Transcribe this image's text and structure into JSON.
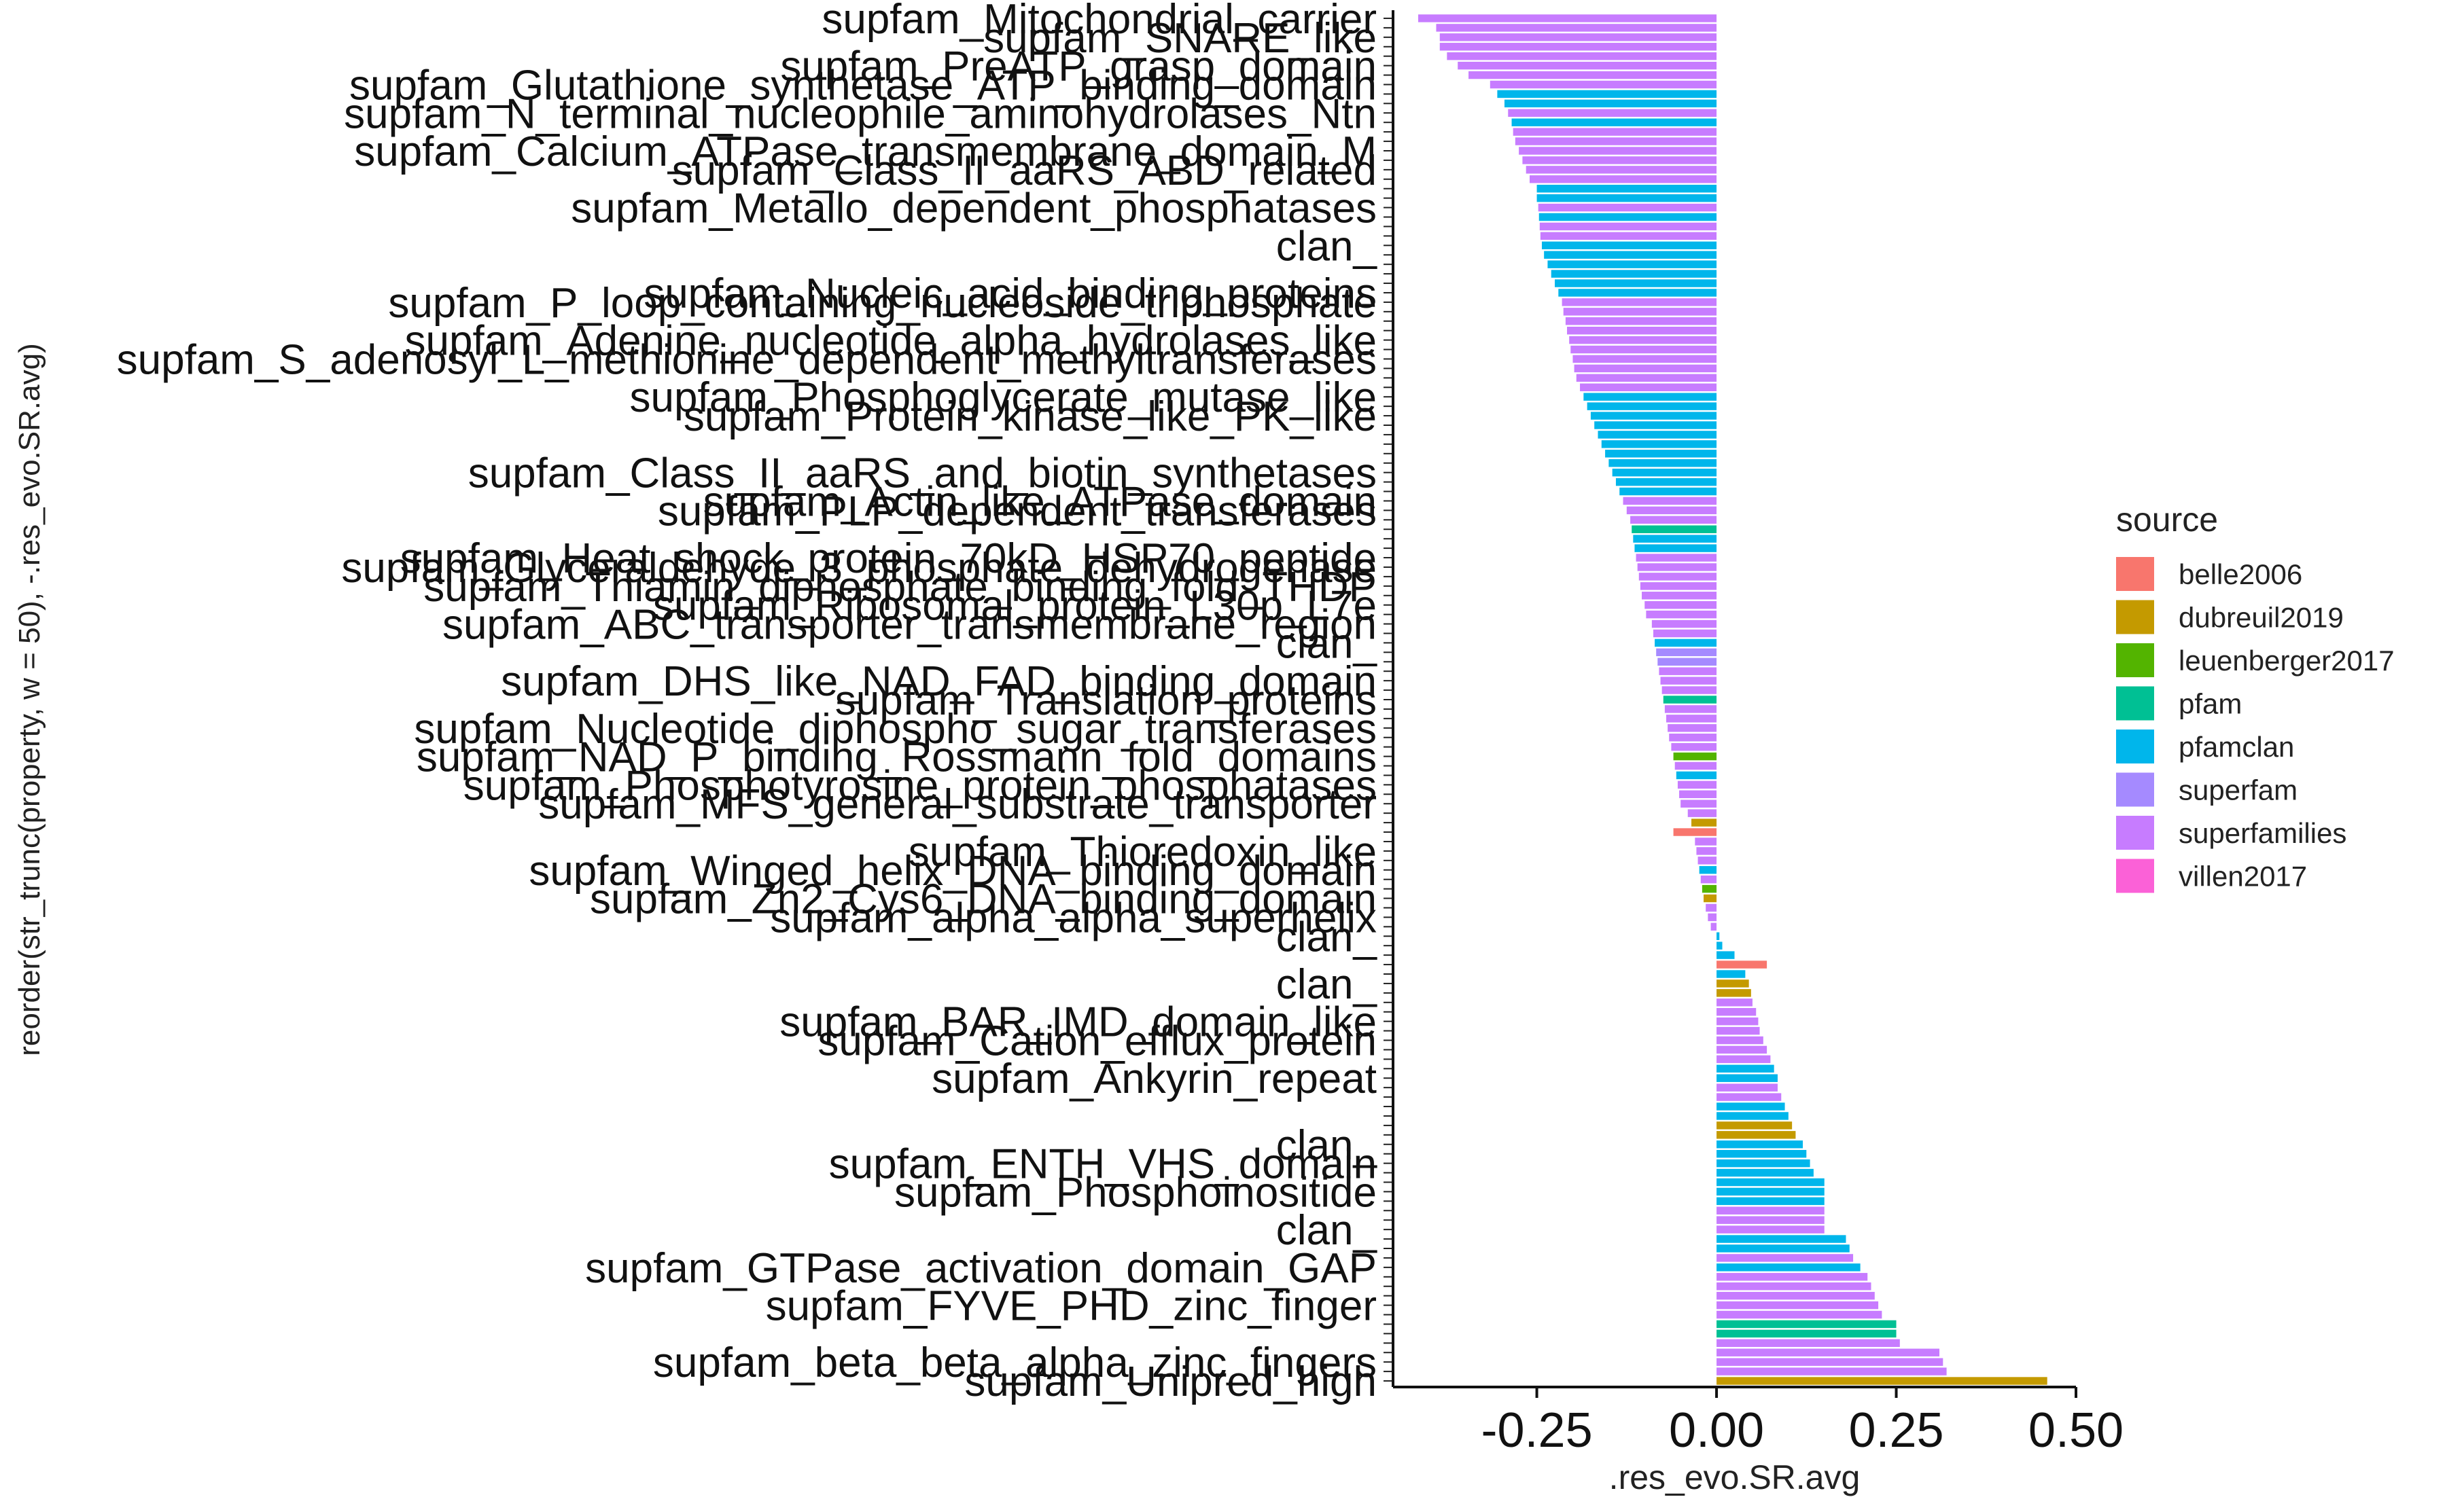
{
  "chart_data": {
    "type": "bar",
    "orientation": "horizontal",
    "xlabel": ".res_evo.SR.avg",
    "ylabel": "reorder(str_trunc(property, w = 50), -.res_evo.SR.avg)",
    "xlim": [
      -0.45,
      0.5
    ],
    "x_ticks": [
      -0.25,
      0.0,
      0.25,
      0.5
    ],
    "x_tick_labels": [
      "-0.25",
      "0.00",
      "0.25",
      "0.50"
    ],
    "grid": false,
    "legend_position": "right",
    "legend": {
      "title": "source",
      "entries": [
        {
          "name": "belle2006",
          "color": "#F8766D"
        },
        {
          "name": "dubreuil2019",
          "color": "#C49A00"
        },
        {
          "name": "leuenberger2017",
          "color": "#53B400"
        },
        {
          "name": "pfam",
          "color": "#00C094"
        },
        {
          "name": "pfamclan",
          "color": "#00B6EB"
        },
        {
          "name": "superfam",
          "color": "#A58AFF"
        },
        {
          "name": "superfamilies",
          "color": "#C77CFF"
        },
        {
          "name": "villen2017",
          "color": "#FB61D7"
        }
      ]
    },
    "color_by_source": {
      "belle2006": "#F8766D",
      "dubreuil2019": "#C49A00",
      "leuenberger2017": "#53B400",
      "pfam": "#00C094",
      "pfamclan": "#00B6EB",
      "superfam": "#A58AFF",
      "superfamilies": "#C77CFF",
      "villen2017": "#FB61D7"
    },
    "series": [
      {
        "label": "supfam_Mitochondrial_carrier",
        "value": -0.415,
        "source": "superfamilies"
      },
      {
        "label": "",
        "value": -0.39,
        "source": "superfamilies"
      },
      {
        "label": "supfam_SNARE_like",
        "value": -0.385,
        "source": "superfamilies"
      },
      {
        "label": "",
        "value": -0.385,
        "source": "superfamilies"
      },
      {
        "label": "",
        "value": -0.375,
        "source": "superfamilies"
      },
      {
        "label": "supfam_PreATP_grasp_domain",
        "value": -0.36,
        "source": "superfamilies"
      },
      {
        "label": "",
        "value": -0.345,
        "source": "superfamilies"
      },
      {
        "label": "supfam_Glutathione_synthetase_ATP_binding_domain",
        "value": -0.315,
        "source": "superfamilies"
      },
      {
        "label": "",
        "value": -0.305,
        "source": "pfamclan"
      },
      {
        "label": "",
        "value": -0.295,
        "source": "pfamclan"
      },
      {
        "label": "supfam_N_terminal_nucleophile_aminohydrolases_Ntn",
        "value": -0.29,
        "source": "superfamilies"
      },
      {
        "label": "",
        "value": -0.285,
        "source": "pfamclan"
      },
      {
        "label": "",
        "value": -0.283,
        "source": "superfamilies"
      },
      {
        "label": "",
        "value": -0.28,
        "source": "superfamilies"
      },
      {
        "label": "supfam_Calcium_ATPase_transmembrane_domain_M",
        "value": -0.275,
        "source": "superfamilies"
      },
      {
        "label": "",
        "value": -0.27,
        "source": "superfamilies"
      },
      {
        "label": "supfam_Class_II_aaRS_ABD_related",
        "value": -0.265,
        "source": "superfamilies"
      },
      {
        "label": "",
        "value": -0.26,
        "source": "superfamilies"
      },
      {
        "label": "",
        "value": -0.25,
        "source": "pfamclan"
      },
      {
        "label": "",
        "value": -0.25,
        "source": "pfamclan"
      },
      {
        "label": "supfam_Metallo_dependent_phosphatases",
        "value": -0.248,
        "source": "superfamilies"
      },
      {
        "label": "",
        "value": -0.247,
        "source": "pfamclan"
      },
      {
        "label": "",
        "value": -0.246,
        "source": "superfamilies"
      },
      {
        "label": "",
        "value": -0.245,
        "source": "superfamilies"
      },
      {
        "label": "clan_",
        "value": -0.243,
        "source": "pfamclan"
      },
      {
        "label": "",
        "value": -0.24,
        "source": "pfamclan"
      },
      {
        "label": "",
        "value": -0.235,
        "source": "pfamclan"
      },
      {
        "label": "",
        "value": -0.23,
        "source": "pfamclan"
      },
      {
        "label": "",
        "value": -0.225,
        "source": "pfamclan"
      },
      {
        "label": "supfam_Nucleic_acid_binding_proteins",
        "value": -0.22,
        "source": "pfamclan"
      },
      {
        "label": "supfam_P_loop_containing_nucleoside_triphosphate",
        "value": -0.215,
        "source": "superfamilies"
      },
      {
        "label": "",
        "value": -0.213,
        "source": "superfamilies"
      },
      {
        "label": "",
        "value": -0.21,
        "source": "superfamilies"
      },
      {
        "label": "",
        "value": -0.208,
        "source": "superfamilies"
      },
      {
        "label": "supfam_Adenine_nucleotide_alpha_hydrolases_like",
        "value": -0.205,
        "source": "superfamilies"
      },
      {
        "label": "",
        "value": -0.203,
        "source": "superfamilies"
      },
      {
        "label": "supfam_S_adenosyl_L_methionine_dependent_methyltransferases",
        "value": -0.2,
        "source": "superfamilies"
      },
      {
        "label": "",
        "value": -0.198,
        "source": "superfamilies"
      },
      {
        "label": "",
        "value": -0.195,
        "source": "superfamilies"
      },
      {
        "label": "",
        "value": -0.19,
        "source": "superfamilies"
      },
      {
        "label": "supfam_Phosphoglycerate_mutase_like",
        "value": -0.185,
        "source": "pfamclan"
      },
      {
        "label": "",
        "value": -0.18,
        "source": "pfamclan"
      },
      {
        "label": "supfam_Protein_kinase_like_PK_like",
        "value": -0.175,
        "source": "pfamclan"
      },
      {
        "label": "",
        "value": -0.17,
        "source": "pfamclan"
      },
      {
        "label": "",
        "value": -0.165,
        "source": "pfamclan"
      },
      {
        "label": "",
        "value": -0.16,
        "source": "pfamclan"
      },
      {
        "label": "",
        "value": -0.155,
        "source": "pfamclan"
      },
      {
        "label": "",
        "value": -0.15,
        "source": "pfamclan"
      },
      {
        "label": "supfam_Class_II_aaRS_and_biotin_synthetases",
        "value": -0.145,
        "source": "pfamclan"
      },
      {
        "label": "",
        "value": -0.14,
        "source": "pfamclan"
      },
      {
        "label": "",
        "value": -0.135,
        "source": "pfamclan"
      },
      {
        "label": "supfam_Actin_like_ATPase_domain",
        "value": -0.13,
        "source": "superfamilies"
      },
      {
        "label": "supfam_PLP_dependent_transferases",
        "value": -0.125,
        "source": "superfamilies"
      },
      {
        "label": "",
        "value": -0.12,
        "source": "superfamilies"
      },
      {
        "label": "",
        "value": -0.118,
        "source": "pfam"
      },
      {
        "label": "",
        "value": -0.116,
        "source": "pfamclan"
      },
      {
        "label": "",
        "value": -0.114,
        "source": "pfamclan"
      },
      {
        "label": "supfam_Heat_shock_protein_70kD_HSP70_peptide",
        "value": -0.112,
        "source": "superfamilies"
      },
      {
        "label": "supfam_Glyceraldehyde_3_phosphate_dehydrogenase",
        "value": -0.11,
        "source": "superfamilies"
      },
      {
        "label": "",
        "value": -0.108,
        "source": "superfamilies"
      },
      {
        "label": "supfam_Thiamin_diphosphate_binding_fold_THDP",
        "value": -0.106,
        "source": "superfamilies"
      },
      {
        "label": "",
        "value": -0.104,
        "source": "superfamilies"
      },
      {
        "label": "supfam_Ribosomal_protein_L30p_L7e",
        "value": -0.1,
        "source": "superfamilies"
      },
      {
        "label": "",
        "value": -0.098,
        "source": "superfamilies"
      },
      {
        "label": "supfam_ABC_transporter_transmembrane_region",
        "value": -0.09,
        "source": "superfamilies"
      },
      {
        "label": "",
        "value": -0.088,
        "source": "superfamilies"
      },
      {
        "label": "clan_",
        "value": -0.086,
        "source": "pfamclan"
      },
      {
        "label": "",
        "value": -0.084,
        "source": "superfam"
      },
      {
        "label": "",
        "value": -0.082,
        "source": "superfam"
      },
      {
        "label": "",
        "value": -0.08,
        "source": "superfamilies"
      },
      {
        "label": "supfam_DHS_like_NAD_FAD_binding_domain",
        "value": -0.078,
        "source": "superfamilies"
      },
      {
        "label": "",
        "value": -0.076,
        "source": "superfamilies"
      },
      {
        "label": "supfam_Translation_proteins",
        "value": -0.074,
        "source": "pfam"
      },
      {
        "label": "",
        "value": -0.072,
        "source": "superfamilies"
      },
      {
        "label": "",
        "value": -0.07,
        "source": "superfamilies"
      },
      {
        "label": "supfam_Nucleotide_diphospho_sugar_transferases",
        "value": -0.068,
        "source": "superfamilies"
      },
      {
        "label": "",
        "value": -0.066,
        "source": "superfamilies"
      },
      {
        "label": "",
        "value": -0.063,
        "source": "superfamilies"
      },
      {
        "label": "supfam_NAD_P_binding_Rossmann_fold_domains",
        "value": -0.06,
        "source": "leuenberger2017"
      },
      {
        "label": "",
        "value": -0.058,
        "source": "superfamilies"
      },
      {
        "label": "",
        "value": -0.056,
        "source": "pfamclan"
      },
      {
        "label": "supfam_Phosphotyrosine_protein_phosphatases",
        "value": -0.054,
        "source": "superfamilies"
      },
      {
        "label": "",
        "value": -0.052,
        "source": "superfamilies"
      },
      {
        "label": "supfam_MFS_general_substrate_transporter",
        "value": -0.05,
        "source": "superfamilies"
      },
      {
        "label": "",
        "value": -0.04,
        "source": "superfamilies"
      },
      {
        "label": "",
        "value": -0.035,
        "source": "dubreuil2019"
      },
      {
        "label": "",
        "value": -0.06,
        "source": "belle2006"
      },
      {
        "label": "",
        "value": -0.03,
        "source": "superfamilies"
      },
      {
        "label": "supfam_Thioredoxin_like",
        "value": -0.028,
        "source": "superfamilies"
      },
      {
        "label": "",
        "value": -0.026,
        "source": "superfamilies"
      },
      {
        "label": "supfam_Winged_helix_DNA_binding_domain",
        "value": -0.024,
        "source": "pfamclan"
      },
      {
        "label": "",
        "value": -0.022,
        "source": "superfamilies"
      },
      {
        "label": "",
        "value": -0.02,
        "source": "leuenberger2017"
      },
      {
        "label": "supfam_Zn2_Cys6_DNA_binding_domain",
        "value": -0.018,
        "source": "dubreuil2019"
      },
      {
        "label": "",
        "value": -0.015,
        "source": "superfamilies"
      },
      {
        "label": "supfam_alpha_alpha_superhelix",
        "value": -0.012,
        "source": "superfamilies"
      },
      {
        "label": "",
        "value": -0.008,
        "source": "superfamilies"
      },
      {
        "label": "clan_",
        "value": 0.004,
        "source": "pfamclan"
      },
      {
        "label": "",
        "value": 0.008,
        "source": "pfamclan"
      },
      {
        "label": "",
        "value": 0.025,
        "source": "pfamclan"
      },
      {
        "label": "",
        "value": 0.07,
        "source": "belle2006"
      },
      {
        "label": "",
        "value": 0.04,
        "source": "pfamclan"
      },
      {
        "label": "clan_",
        "value": 0.045,
        "source": "dubreuil2019"
      },
      {
        "label": "",
        "value": 0.048,
        "source": "dubreuil2019"
      },
      {
        "label": "",
        "value": 0.05,
        "source": "superfamilies"
      },
      {
        "label": "",
        "value": 0.055,
        "source": "superfamilies"
      },
      {
        "label": "supfam_BAR_IMD_domain_like",
        "value": 0.058,
        "source": "superfamilies"
      },
      {
        "label": "",
        "value": 0.06,
        "source": "superfamilies"
      },
      {
        "label": "supfam_Cation_efflux_protein",
        "value": 0.065,
        "source": "superfamilies"
      },
      {
        "label": "",
        "value": 0.07,
        "source": "superfamilies"
      },
      {
        "label": "",
        "value": 0.075,
        "source": "superfamilies"
      },
      {
        "label": "",
        "value": 0.08,
        "source": "pfamclan"
      },
      {
        "label": "supfam_Ankyrin_repeat",
        "value": 0.085,
        "source": "pfamclan"
      },
      {
        "label": "",
        "value": 0.085,
        "source": "superfamilies"
      },
      {
        "label": "",
        "value": 0.09,
        "source": "superfamilies"
      },
      {
        "label": "",
        "value": 0.095,
        "source": "pfamclan"
      },
      {
        "label": "",
        "value": 0.1,
        "source": "pfamclan"
      },
      {
        "label": "",
        "value": 0.105,
        "source": "dubreuil2019"
      },
      {
        "label": "",
        "value": 0.11,
        "source": "dubreuil2019"
      },
      {
        "label": "clan_",
        "value": 0.12,
        "source": "pfamclan"
      },
      {
        "label": "",
        "value": 0.125,
        "source": "pfamclan"
      },
      {
        "label": "supfam_ENTH_VHS_domain",
        "value": 0.13,
        "source": "pfamclan"
      },
      {
        "label": "",
        "value": 0.135,
        "source": "pfamclan"
      },
      {
        "label": "",
        "value": 0.15,
        "source": "pfamclan"
      },
      {
        "label": "supfam_Phosphoinositide",
        "value": 0.15,
        "source": "pfamclan"
      },
      {
        "label": "",
        "value": 0.15,
        "source": "pfamclan"
      },
      {
        "label": "",
        "value": 0.15,
        "source": "superfamilies"
      },
      {
        "label": "",
        "value": 0.15,
        "source": "superfamilies"
      },
      {
        "label": "clan_",
        "value": 0.15,
        "source": "superfamilies"
      },
      {
        "label": "",
        "value": 0.18,
        "source": "pfamclan"
      },
      {
        "label": "",
        "value": 0.185,
        "source": "pfamclan"
      },
      {
        "label": "",
        "value": 0.19,
        "source": "superfamilies"
      },
      {
        "label": "supfam_GTPase_activation_domain_GAP",
        "value": 0.2,
        "source": "pfamclan"
      },
      {
        "label": "",
        "value": 0.21,
        "source": "superfamilies"
      },
      {
        "label": "",
        "value": 0.215,
        "source": "superfamilies"
      },
      {
        "label": "",
        "value": 0.22,
        "source": "superfamilies"
      },
      {
        "label": "supfam_FYVE_PHD_zinc_finger",
        "value": 0.225,
        "source": "superfamilies"
      },
      {
        "label": "",
        "value": 0.23,
        "source": "superfamilies"
      },
      {
        "label": "",
        "value": 0.25,
        "source": "pfam"
      },
      {
        "label": "",
        "value": 0.25,
        "source": "pfam"
      },
      {
        "label": "",
        "value": 0.255,
        "source": "superfamilies"
      },
      {
        "label": "",
        "value": 0.31,
        "source": "superfamilies"
      },
      {
        "label": "supfam_beta_beta_alpha_zinc_fingers",
        "value": 0.315,
        "source": "superfamilies"
      },
      {
        "label": "",
        "value": 0.32,
        "source": "superfamilies"
      },
      {
        "label": "supfam_Unipred_high",
        "value": 0.46,
        "source": "dubreuil2019"
      }
    ]
  }
}
